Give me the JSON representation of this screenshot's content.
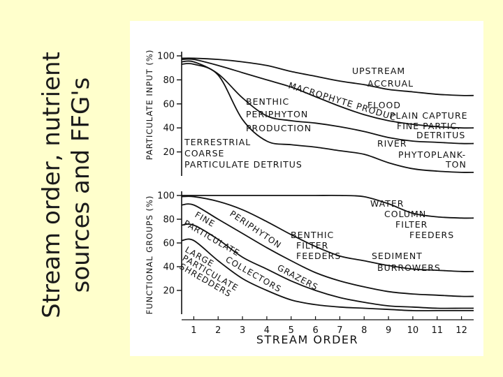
{
  "slide": {
    "title_line1": "Stream order, nutrient",
    "title_line2": "sources and FFG's"
  },
  "chart_data": [
    {
      "type": "line",
      "ylabel": "PARTICULATE INPUT (%)",
      "xlabel": "",
      "ylim": [
        0,
        100
      ],
      "yticks": [
        20,
        40,
        60,
        80,
        100
      ],
      "xlim": [
        0.5,
        12.5
      ],
      "x": [
        1,
        2,
        3,
        4,
        5,
        6,
        7,
        8,
        9,
        10,
        11,
        12
      ],
      "series": [
        {
          "key": "s1",
          "values": [
            98,
            97,
            95,
            92,
            87,
            83,
            79,
            76,
            72,
            70,
            68,
            67
          ]
        },
        {
          "key": "s2",
          "values": [
            97,
            92,
            86,
            80,
            74,
            66,
            58,
            51,
            46,
            43,
            41,
            40
          ]
        },
        {
          "key": "s3",
          "values": [
            95,
            85,
            65,
            50,
            46,
            44,
            41,
            37,
            32,
            29,
            28,
            27
          ]
        },
        {
          "key": "s4",
          "values": [
            93,
            84,
            47,
            29,
            26,
            24,
            21,
            18,
            11,
            6,
            4,
            3
          ]
        }
      ],
      "annotations": [
        {
          "lines": [
            "UPSTREAM",
            "ACCRUAL"
          ]
        },
        {
          "lines": [
            "MACROPHYTE PRODUC"
          ]
        },
        {
          "lines": [
            "FLOOD",
            "PLAIN CAPTURE"
          ]
        },
        {
          "lines": [
            "FINE PARTIC.",
            "DETRITUS"
          ]
        },
        {
          "lines": [
            "BENTHIC",
            "PERIPHYTON",
            "PRODUCTION"
          ]
        },
        {
          "lines": [
            "RIVER",
            "PHYTOPLANK-",
            "TON"
          ]
        },
        {
          "lines": [
            "TERRESTRIAL",
            "COARSE",
            "PARTICULATE DETRITUS"
          ]
        }
      ]
    },
    {
      "type": "line",
      "ylabel": "FUNCTIONAL GROUPS (%)",
      "xlabel": "STREAM ORDER",
      "ylim": [
        0,
        100
      ],
      "yticks": [
        20,
        40,
        60,
        80,
        100
      ],
      "xlim": [
        0.5,
        12.5
      ],
      "xticks": [
        "1",
        "2",
        "3",
        "4",
        "5",
        "6",
        "7",
        "8",
        "9",
        "10",
        "11",
        "12"
      ],
      "x": [
        1,
        2,
        3,
        4,
        5,
        6,
        7,
        8,
        9,
        10,
        11,
        12
      ],
      "series": [
        {
          "key": "s1",
          "values": [
            100,
            100,
            100,
            100,
            100,
            100,
            100,
            99,
            93,
            85,
            82,
            81
          ]
        },
        {
          "key": "s2",
          "values": [
            99,
            95,
            88,
            78,
            67,
            57,
            49,
            45,
            41,
            38,
            37,
            36
          ]
        },
        {
          "key": "s3",
          "values": [
            92,
            80,
            68,
            56,
            45,
            35,
            28,
            23,
            19,
            17,
            16,
            15
          ]
        },
        {
          "key": "s4",
          "values": [
            75,
            63,
            48,
            38,
            28,
            20,
            14,
            10,
            7,
            6,
            5,
            5
          ]
        },
        {
          "key": "s5",
          "values": [
            62,
            45,
            30,
            20,
            12,
            8,
            6,
            5,
            4,
            3,
            3,
            3
          ]
        }
      ],
      "annotations": [
        {
          "lines": [
            "WATER",
            "COLUMN",
            "FILTER",
            "FEEDERS"
          ]
        },
        {
          "lines": [
            "FINE",
            "PARTICULATE"
          ]
        },
        {
          "lines": [
            "PERIPHYTON"
          ]
        },
        {
          "lines": [
            "BENTHIC",
            "FILTER",
            "FEEDERS"
          ]
        },
        {
          "lines": [
            "SEDIMENT",
            "BURROWERS"
          ]
        },
        {
          "lines": [
            "GRAZERS"
          ]
        },
        {
          "lines": [
            "COLLECTORS"
          ]
        },
        {
          "lines": [
            "LARGE",
            "PARTICULATE",
            "SHREDDERS"
          ]
        }
      ]
    }
  ]
}
